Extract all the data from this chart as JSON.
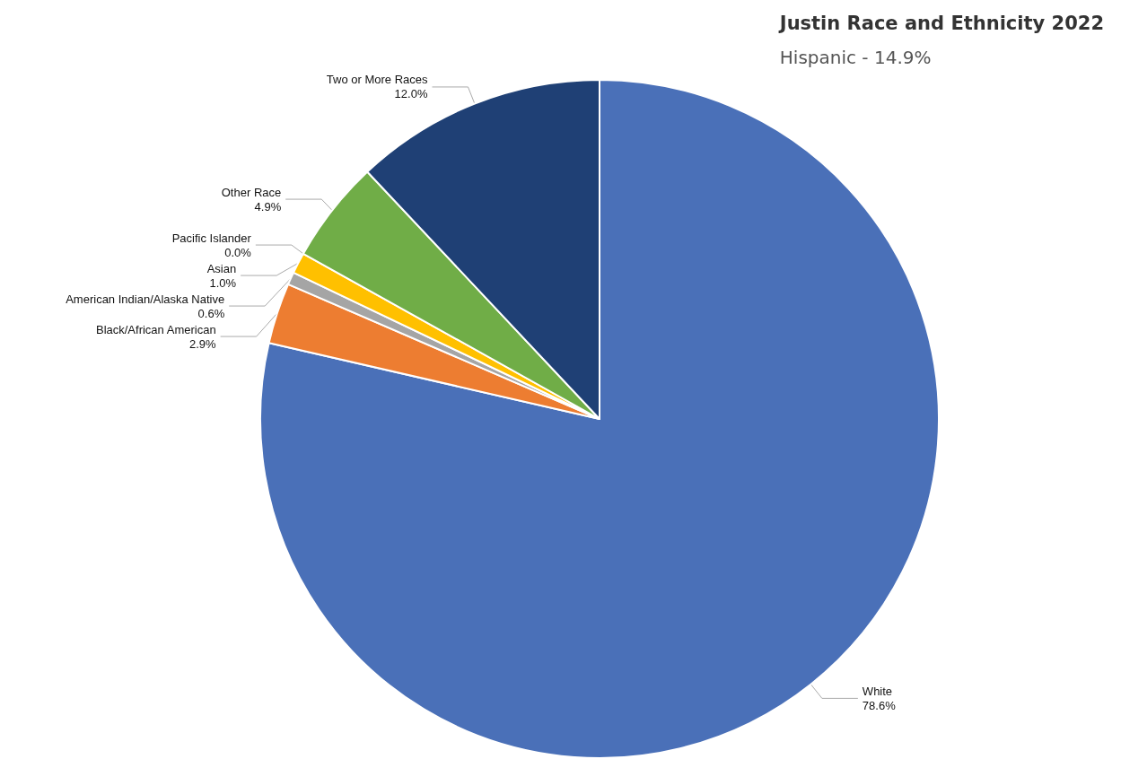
{
  "chart_data": {
    "type": "pie",
    "title": "Justin Race and Ethnicity 2022",
    "subtitle": "Hispanic - 14.9%",
    "categories": [
      "White",
      "Black/African American",
      "American Indian/Alaska Native",
      "Asian",
      "Pacific Islander",
      "Other Race",
      "Two or More Races"
    ],
    "values": [
      78.6,
      2.9,
      0.6,
      1.0,
      0.0,
      4.9,
      12.0
    ],
    "value_labels": [
      "78.6%",
      "2.9%",
      "0.6%",
      "1.0%",
      "0.0%",
      "4.9%",
      "12.0%"
    ],
    "colors": [
      "#4a70b8",
      "#ed7d31",
      "#a5a5a5",
      "#ffc000",
      "#5b9bd5",
      "#70ad47",
      "#1f4075"
    ],
    "legend": false
  }
}
